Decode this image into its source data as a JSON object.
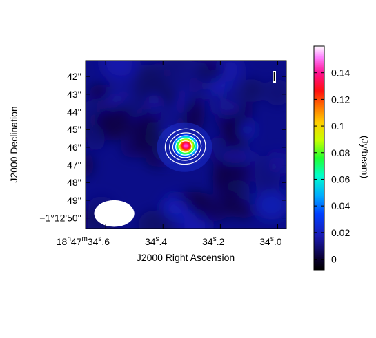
{
  "chart_data": {
    "type": "heatmap",
    "title": "",
    "xlabel": "J2000 Right Ascension",
    "ylabel": "J2000 Declination",
    "colorbar_label": "(Jy/beam)",
    "x_ticks": [
      {
        "h": "18",
        "m": "47",
        "s": "34",
        "frac": ".6",
        "sec": 34.6
      },
      {
        "h": "",
        "m": "",
        "s": "34",
        "frac": ".4",
        "sec": 34.4
      },
      {
        "h": "",
        "m": "",
        "s": "34",
        "frac": ".2",
        "sec": 34.2
      },
      {
        "h": "",
        "m": "",
        "s": "34",
        "frac": ".0",
        "sec": 34.0
      }
    ],
    "y_ticks": [
      {
        "label": "42''",
        "arcsec": 42
      },
      {
        "label": "43''",
        "arcsec": 43
      },
      {
        "label": "44''",
        "arcsec": 44
      },
      {
        "label": "45''",
        "arcsec": 45
      },
      {
        "label": "46''",
        "arcsec": 46
      },
      {
        "label": "47''",
        "arcsec": 47
      },
      {
        "label": "48''",
        "arcsec": 48
      },
      {
        "label": "49''",
        "arcsec": 49
      },
      {
        "label": "−1°12'50''",
        "arcsec": 50
      }
    ],
    "x_range_sec": [
      34.67,
      33.97
    ],
    "y_range_arcsec": [
      50.6,
      41.1
    ],
    "colorbar": {
      "range": [
        -0.008,
        0.16
      ],
      "ticks": [
        0,
        0.02,
        0.04,
        0.06,
        0.08,
        0.1,
        0.12,
        0.14
      ],
      "tick_labels": [
        "0",
        "0.02",
        "0.04",
        "0.06",
        "0.08",
        "0.1",
        "0.12",
        "0.14"
      ]
    },
    "source": {
      "ra_sec": 34.32,
      "dec_arcsec": 45.92,
      "peak_jy_per_beam": 0.15
    },
    "contour_levels": [
      0.025,
      0.05,
      0.075,
      0.1,
      0.125
    ],
    "beam": {
      "ra_sec": 34.57,
      "dec_arcsec": 49.75,
      "major_arcsec": 1.05,
      "minor_arcsec": 0.75,
      "pa_deg": 90
    },
    "grid": false,
    "legend": "none"
  }
}
